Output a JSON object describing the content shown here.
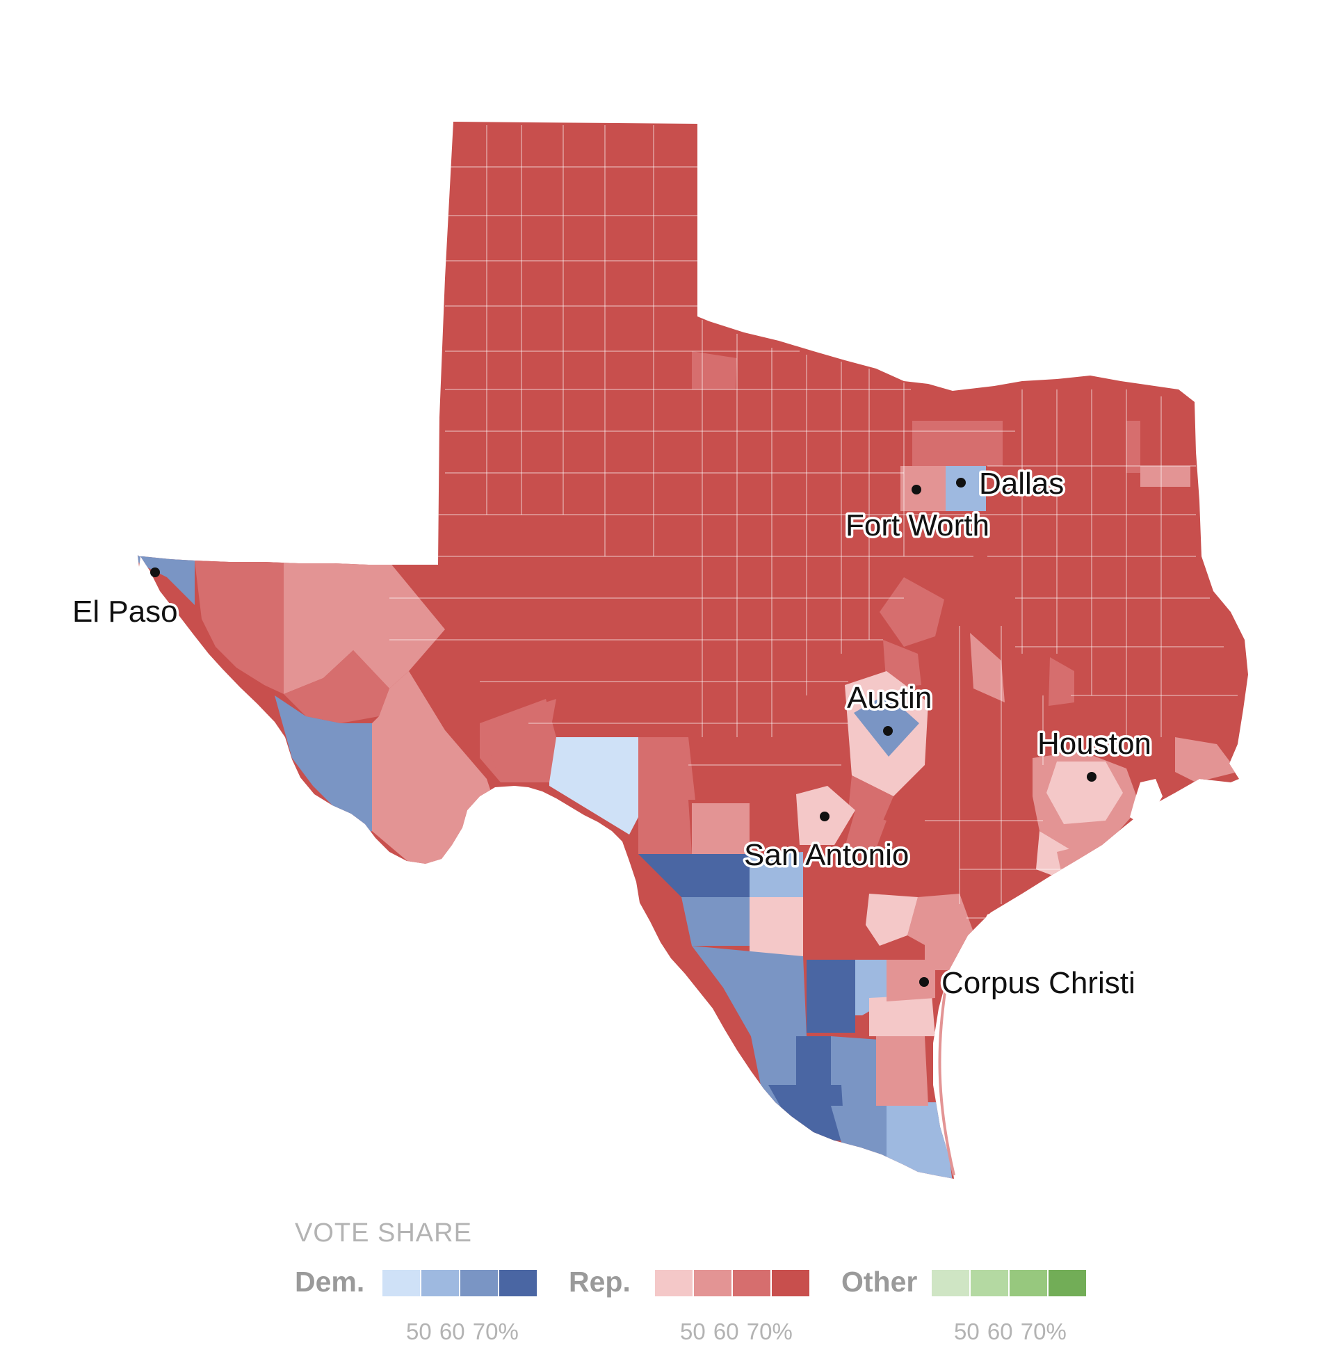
{
  "colors": {
    "dem": [
      "#cfe1f7",
      "#9eb9e0",
      "#7a95c4",
      "#4a66a3"
    ],
    "rep": [
      "#f4c8c8",
      "#e39494",
      "#d66e6e",
      "#c84f4d"
    ],
    "other": [
      "#cfe5c4",
      "#b4d9a2",
      "#97c87e",
      "#72ad57"
    ]
  },
  "cities": [
    {
      "name": "Dallas"
    },
    {
      "name": "Fort Worth"
    },
    {
      "name": "El Paso"
    },
    {
      "name": "Austin"
    },
    {
      "name": "Houston"
    },
    {
      "name": "San Antonio"
    },
    {
      "name": "Corpus Christi"
    }
  ],
  "legend": {
    "title": "VOTE SHARE",
    "groups": [
      {
        "name": "Dem.",
        "ticks": "50 60 70%"
      },
      {
        "name": "Rep.",
        "ticks": "50 60 70%"
      },
      {
        "name": "Other",
        "ticks": "50 60 70%"
      }
    ]
  }
}
